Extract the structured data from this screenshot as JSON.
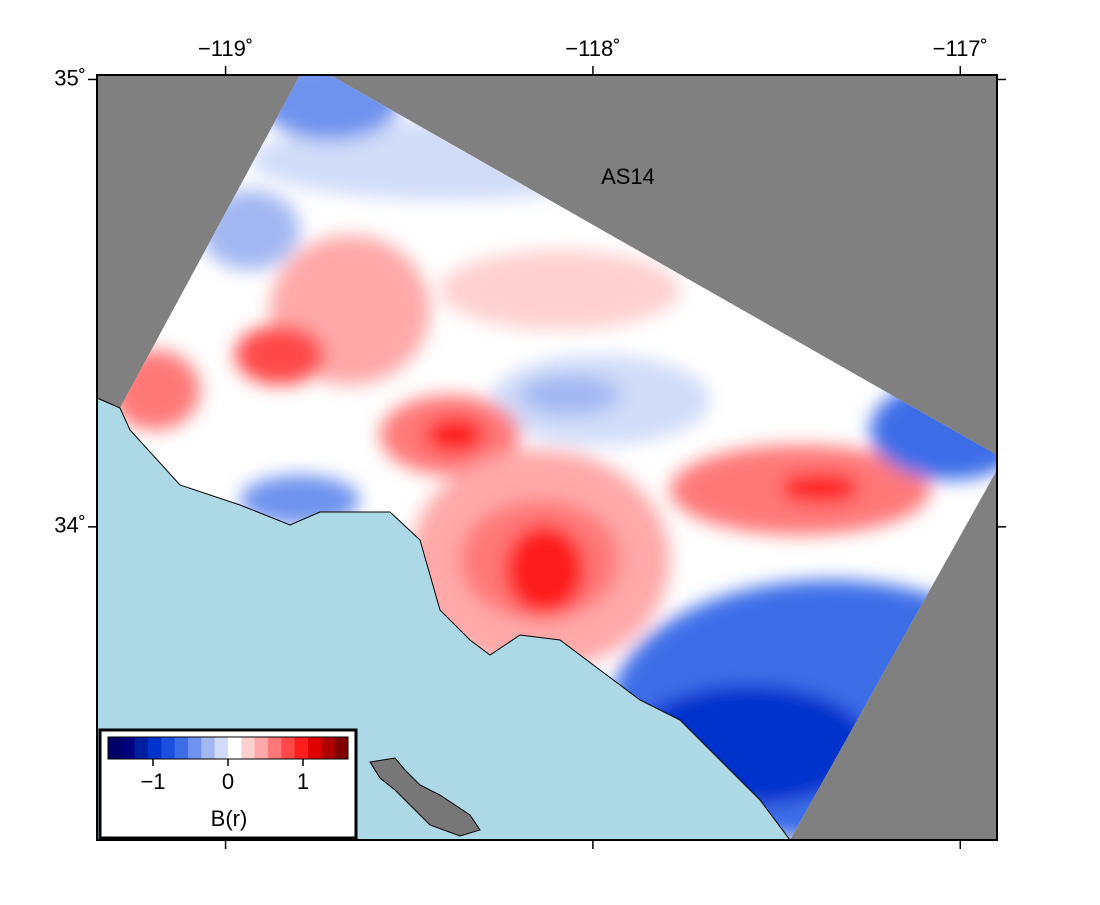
{
  "map": {
    "title": "AS14",
    "lonlim": [
      -119.35,
      -116.9
    ],
    "latlim": [
      33.3,
      35.01
    ],
    "lon_ticks": [
      {
        "value": -119,
        "label": "−119˚"
      },
      {
        "value": -118,
        "label": "−118˚"
      },
      {
        "value": -117,
        "label": "−117˚"
      }
    ],
    "lat_ticks": [
      {
        "value": 35,
        "label": "35˚"
      },
      {
        "value": 34,
        "label": "34˚"
      }
    ]
  },
  "colorbar": {
    "label": "B(r)",
    "limits": [
      -1.6,
      1.6
    ],
    "ticks": [
      {
        "value": -1,
        "label": "−1"
      },
      {
        "value": 0,
        "label": "0"
      },
      {
        "value": 1,
        "label": "1"
      }
    ],
    "colors": [
      "#000066",
      "#00007f",
      "#001fa0",
      "#0033cc",
      "#1a4fe0",
      "#3d6ee8",
      "#6e93ee",
      "#a3b8f2",
      "#d0dcf8",
      "#ffffff",
      "#ffd0d0",
      "#ffa8a8",
      "#ff7878",
      "#ff4848",
      "#ff1e1e",
      "#e00000",
      "#b00000",
      "#800000"
    ]
  }
}
